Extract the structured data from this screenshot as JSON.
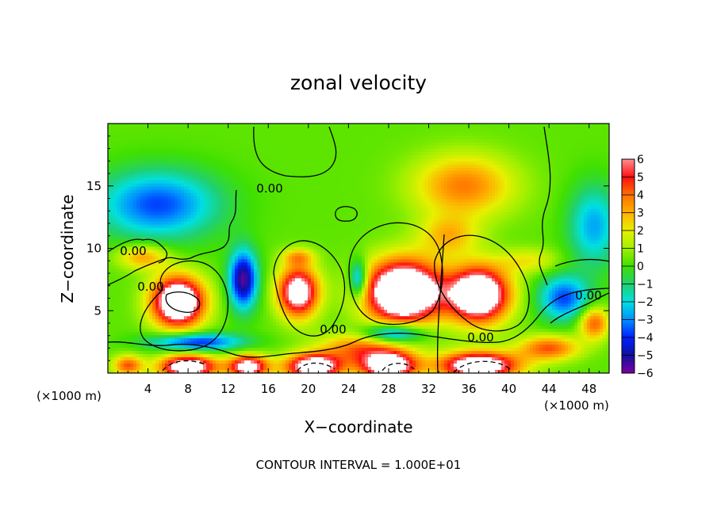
{
  "chart_data": {
    "type": "heatmap",
    "title": "zonal velocity",
    "xlabel": "X−coordinate",
    "ylabel": "Z−coordinate",
    "x_unit_left": "(×1000 m)",
    "x_unit_right": "(×1000 m)",
    "xlim": [
      0,
      50
    ],
    "ylim": [
      0,
      20
    ],
    "x_ticks": [
      4,
      8,
      12,
      16,
      20,
      24,
      28,
      32,
      36,
      40,
      44,
      48
    ],
    "y_ticks": [
      5,
      10,
      15
    ],
    "colorbar": {
      "ticks": [
        6,
        5,
        4,
        3,
        2,
        1,
        0,
        -1,
        -2,
        -3,
        -4,
        -5,
        -6
      ],
      "tick_labels": [
        "6",
        "5",
        "4",
        "3",
        "2",
        "1",
        "0",
        "−1",
        "−2",
        "−3",
        "−4",
        "−5",
        "−6"
      ],
      "range": [
        -6,
        6
      ],
      "colors": [
        "#7a00a0",
        "#1010a0",
        "#0020ff",
        "#0090ff",
        "#00e0e0",
        "#20d070",
        "#40e000",
        "#a0f000",
        "#e8f000",
        "#ffb000",
        "#ff7000",
        "#ff1010",
        "#ff9090"
      ]
    },
    "contour_labels": [
      "0.00",
      "0.00",
      "0.00",
      "0.00",
      "0.00",
      "0.00"
    ],
    "blobs": [
      {
        "x": 7,
        "z": 5.7,
        "rx": 2.6,
        "rz": 2.0,
        "v": 9
      },
      {
        "x": 19,
        "z": 6.5,
        "rx": 2.0,
        "rz": 2.0,
        "v": 7.5
      },
      {
        "x": 29.5,
        "z": 6.5,
        "rx": 3.8,
        "rz": 2.5,
        "v": 10
      },
      {
        "x": 37,
        "z": 6.3,
        "rx": 3.0,
        "rz": 2.2,
        "v": 9
      },
      {
        "x": 13.5,
        "z": 7.5,
        "rx": 1.4,
        "rz": 2.3,
        "v": -6
      },
      {
        "x": 25,
        "z": 7.5,
        "rx": 0.9,
        "rz": 1.5,
        "v": -4
      },
      {
        "x": 25,
        "z": 2.0,
        "rx": 4.0,
        "rz": 1.2,
        "v": 3.5
      },
      {
        "x": 5,
        "z": 13.5,
        "rx": 6.0,
        "rz": 2.7,
        "v": -4
      },
      {
        "x": 35.5,
        "z": 15.0,
        "rx": 5.0,
        "rz": 2.5,
        "v": 3.5
      },
      {
        "x": 34,
        "z": 11.0,
        "rx": 3.0,
        "rz": 1.6,
        "v": 2.5
      },
      {
        "x": 48.5,
        "z": 11.8,
        "rx": 2.5,
        "rz": 3.2,
        "v": -3
      },
      {
        "x": 45.5,
        "z": 6.0,
        "rx": 2.5,
        "rz": 1.8,
        "v": -4
      },
      {
        "x": 48.5,
        "z": 4.0,
        "rx": 1.5,
        "rz": 1.3,
        "v": 4
      },
      {
        "x": 44,
        "z": 2.0,
        "rx": 3.0,
        "rz": 1.0,
        "v": 4
      },
      {
        "x": 3.5,
        "z": 9.3,
        "rx": 2.5,
        "rz": 1.0,
        "v": 3
      },
      {
        "x": 8.8,
        "z": 2.5,
        "rx": 4.5,
        "rz": 0.7,
        "v": -4.5
      },
      {
        "x": 2,
        "z": 0.6,
        "rx": 1.5,
        "rz": 0.8,
        "v": 4
      },
      {
        "x": 8,
        "z": 0.5,
        "rx": 2.8,
        "rz": 0.9,
        "v": 8
      },
      {
        "x": 14,
        "z": 0.5,
        "rx": 2.0,
        "rz": 0.9,
        "v": 7
      },
      {
        "x": 20.5,
        "z": 0.5,
        "rx": 2.8,
        "rz": 1.0,
        "v": 8
      },
      {
        "x": 28,
        "z": 0.6,
        "rx": 2.8,
        "rz": 1.1,
        "v": 8
      },
      {
        "x": 37,
        "z": 0.6,
        "rx": 4.0,
        "rz": 1.1,
        "v": 8
      },
      {
        "x": 28.5,
        "z": 3.2,
        "rx": 3.0,
        "rz": 0.8,
        "v": -4.5
      },
      {
        "x": 19,
        "z": 9.3,
        "rx": 1.6,
        "rz": 0.7,
        "v": 2.5
      },
      {
        "x": 42,
        "z": 9.0,
        "rx": 3.0,
        "rz": 1.0,
        "v": 1.8
      }
    ]
  },
  "footer": {
    "contour_interval": "CONTOUR INTERVAL = 1.000E+01"
  }
}
